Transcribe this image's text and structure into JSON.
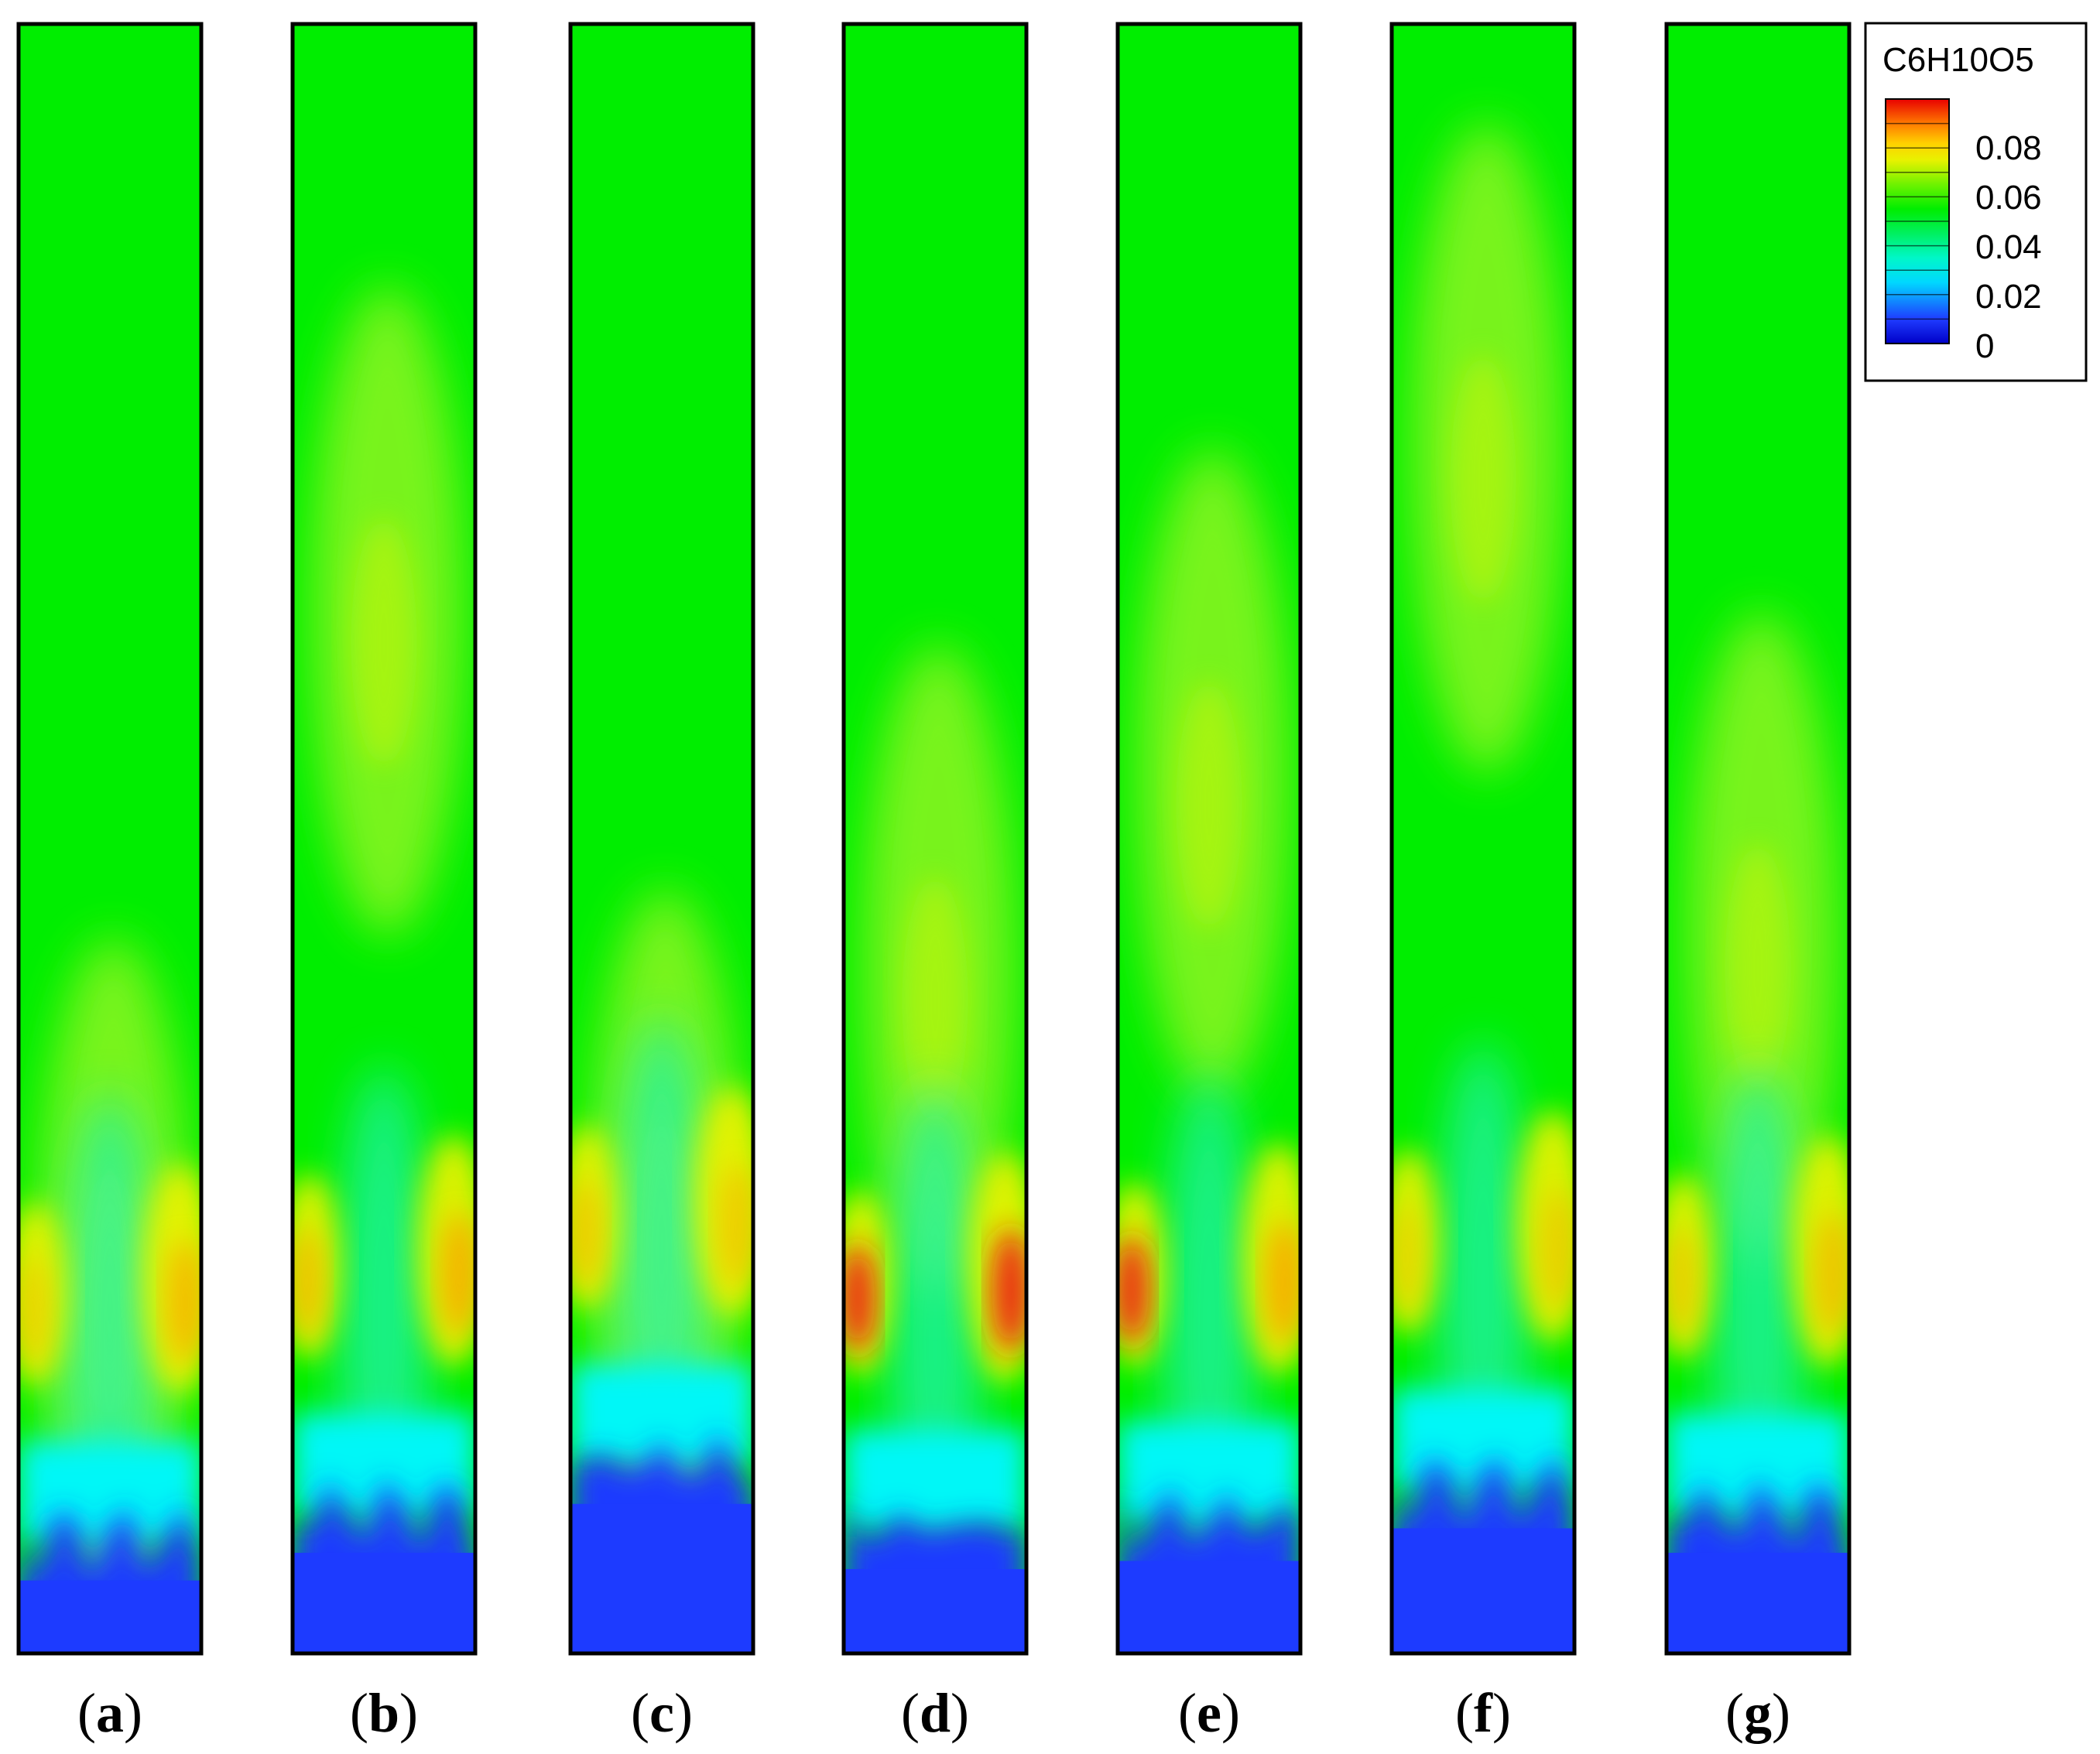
{
  "figure": {
    "panels": [
      {
        "label": "a",
        "surface_level": 0.922,
        "hot_left": 0.35,
        "hot_right": 0.65,
        "plume_top": 0.58
      },
      {
        "label": "b",
        "surface_level": 0.905,
        "hot_left": 0.55,
        "hot_right": 0.75,
        "plume_top": 0.18
      },
      {
        "label": "c",
        "surface_level": 0.875,
        "hot_left": 0.45,
        "hot_right": 0.45,
        "plume_top": 0.55
      },
      {
        "label": "d",
        "surface_level": 0.915,
        "hot_left": 0.95,
        "hot_right": 0.95,
        "plume_top": 0.4
      },
      {
        "label": "e",
        "surface_level": 0.91,
        "hot_left": 0.95,
        "hot_right": 0.8,
        "plume_top": 0.28
      },
      {
        "label": "f",
        "surface_level": 0.89,
        "hot_left": 0.3,
        "hot_right": 0.4,
        "plume_top": 0.08
      },
      {
        "label": "g",
        "surface_level": 0.905,
        "hot_left": 0.4,
        "hot_right": 0.55,
        "plume_top": 0.38
      }
    ],
    "legend": {
      "title": "C6H10O5",
      "ticks": [
        "0.08",
        "0.06",
        "0.04",
        "0.02",
        "0"
      ],
      "range": [
        0,
        0.1
      ],
      "colors": {
        "blue": "#1d3bff",
        "cyan": "#00f7f7",
        "green": "#00ee00",
        "lime": "#8ef520",
        "yellow": "#f2f200",
        "orange": "#ff9d00",
        "red": "#ee1d1d"
      }
    }
  }
}
